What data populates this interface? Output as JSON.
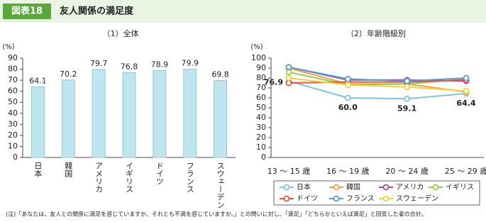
{
  "header": {
    "label": "図表18",
    "title": "友人関係の満足度"
  },
  "note": "(注)「あなたは、友人との関係に満足を感じていますか、それとも不満を感じていますか。」との問いに対し、「満足」「どちらかといえば満足」と回答した者の合計。",
  "chart_data": [
    {
      "type": "bar",
      "subtitle": "（1）全体",
      "y_label": "(%)",
      "categories": [
        "日本",
        "韓国",
        "アメリカ",
        "イギリス",
        "ドイツ",
        "フランス",
        "スウェーデン"
      ],
      "values": [
        64.1,
        70.2,
        79.7,
        76.8,
        78.9,
        79.9,
        69.8
      ],
      "color": "#bfe6ef",
      "ylim": [
        0,
        90
      ],
      "yticks": [
        0,
        10,
        20,
        30,
        40,
        50,
        60,
        70,
        80,
        90
      ]
    },
    {
      "type": "line",
      "subtitle": "（2）年齢階級別",
      "y_label": "(%)",
      "categories": [
        "13 ～ 15 歳",
        "16 ～ 19 歳",
        "20 ～ 24 歳",
        "25 ～ 29 歳"
      ],
      "ylim": [
        0,
        100
      ],
      "yticks": [
        0,
        10,
        20,
        30,
        40,
        50,
        60,
        70,
        80,
        90,
        100
      ],
      "series": [
        {
          "name": "日本",
          "color": "#7cc6dc",
          "values": [
            76.9,
            60.0,
            59.1,
            64.4
          ],
          "value_labels": [
            "76.9",
            "60.0",
            "59.1",
            "64.4"
          ]
        },
        {
          "name": "韓国",
          "color": "#f0a04b",
          "values": [
            90,
            74,
            74,
            66
          ]
        },
        {
          "name": "アメリカ",
          "color": "#a04ca8",
          "values": [
            91,
            78,
            78,
            77
          ]
        },
        {
          "name": "イギリス",
          "color": "#9cc94b",
          "values": [
            86,
            73,
            74,
            79
          ]
        },
        {
          "name": "ドイツ",
          "color": "#e4573c",
          "values": [
            75,
            76,
            76,
            78
          ]
        },
        {
          "name": "フランス",
          "color": "#5b9bd5",
          "values": [
            91,
            79,
            77,
            80
          ]
        },
        {
          "name": "スウェーデン",
          "color": "#f5d03a",
          "values": [
            80,
            73,
            71,
            67
          ]
        }
      ]
    }
  ]
}
